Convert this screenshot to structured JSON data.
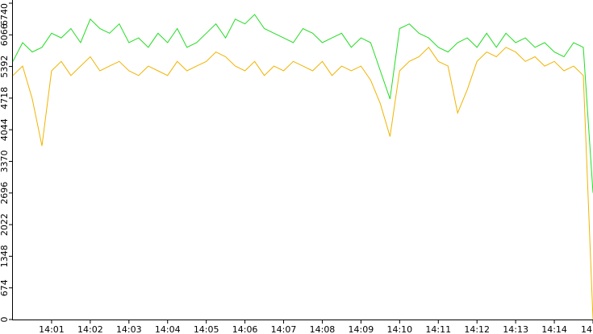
{
  "chart_data": {
    "type": "line",
    "x": [
      0,
      0.25,
      0.5,
      0.75,
      1,
      1.25,
      1.5,
      1.75,
      2,
      2.25,
      2.5,
      2.75,
      3,
      3.25,
      3.5,
      3.75,
      4,
      4.25,
      4.5,
      4.75,
      5,
      5.25,
      5.5,
      5.75,
      6,
      6.25,
      6.5,
      6.75,
      7,
      7.25,
      7.5,
      7.75,
      8,
      8.25,
      8.5,
      8.75,
      9,
      9.25,
      9.5,
      9.75,
      10,
      10.25,
      10.5,
      10.75,
      11,
      11.25,
      11.5,
      11.75,
      12,
      12.25,
      12.5,
      12.75,
      13,
      13.25,
      13.5,
      13.75,
      14,
      14.25,
      14.5,
      14.75,
      15
    ],
    "series": [
      {
        "color": "#22dd22",
        "values": [
          5500,
          5900,
          5700,
          5800,
          6100,
          6000,
          6200,
          5900,
          6400,
          6200,
          6100,
          6300,
          5900,
          6000,
          5800,
          6100,
          5900,
          6200,
          5800,
          5900,
          6100,
          6300,
          6000,
          6400,
          6300,
          6500,
          6200,
          6100,
          6000,
          5900,
          6200,
          6100,
          5900,
          6000,
          6100,
          5800,
          6000,
          5900,
          5300,
          4700,
          6200,
          6300,
          6100,
          6000,
          5800,
          5700,
          5900,
          6000,
          5800,
          6100,
          5800,
          6100,
          5900,
          6000,
          5800,
          5900,
          5700,
          5600,
          5900,
          5800,
          2700
        ]
      },
      {
        "color": "#f0b400",
        "values": [
          5200,
          5400,
          4700,
          3700,
          5300,
          5500,
          5200,
          5400,
          5600,
          5300,
          5400,
          5500,
          5300,
          5200,
          5400,
          5300,
          5200,
          5500,
          5300,
          5400,
          5500,
          5700,
          5600,
          5400,
          5300,
          5500,
          5200,
          5400,
          5300,
          5500,
          5400,
          5300,
          5500,
          5200,
          5400,
          5300,
          5400,
          5100,
          4600,
          3900,
          5300,
          5500,
          5600,
          5800,
          5500,
          5400,
          4400,
          4900,
          5500,
          5700,
          5600,
          5800,
          5700,
          5500,
          5600,
          5400,
          5500,
          5300,
          5400,
          5200,
          0
        ]
      }
    ],
    "xlim": [
      0,
      15
    ],
    "xticks": [
      {
        "value": 1,
        "label": "14:01"
      },
      {
        "value": 2,
        "label": "14:02"
      },
      {
        "value": 3,
        "label": "14:03"
      },
      {
        "value": 4,
        "label": "14:04"
      },
      {
        "value": 5,
        "label": "14:05"
      },
      {
        "value": 6,
        "label": "14:06"
      },
      {
        "value": 7,
        "label": "14:07"
      },
      {
        "value": 8,
        "label": "14:08"
      },
      {
        "value": 9,
        "label": "14:09"
      },
      {
        "value": 10,
        "label": "14:10"
      },
      {
        "value": 11,
        "label": "14:11"
      },
      {
        "value": 12,
        "label": "14:12"
      },
      {
        "value": 13,
        "label": "14:13"
      },
      {
        "value": 14,
        "label": "14:14"
      },
      {
        "value": 15,
        "label": "14"
      }
    ],
    "ylim": [
      0,
      6740
    ],
    "yticks": [
      0,
      674,
      1348,
      2022,
      2696,
      3370,
      4044,
      4718,
      5392,
      6066,
      6740
    ]
  }
}
